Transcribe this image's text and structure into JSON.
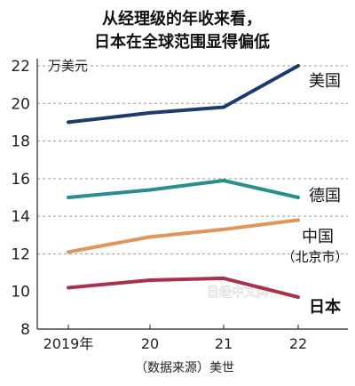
{
  "chart_data": {
    "type": "line",
    "title_lines": [
      "从经理级的年收来看，",
      "日本在全球范围显得偏低"
    ],
    "unit_label": "万美元",
    "x": [
      "2019年",
      "20",
      "21",
      "22"
    ],
    "ylim": [
      8,
      22
    ],
    "yticks": [
      8,
      10,
      12,
      14,
      16,
      18,
      20,
      22
    ],
    "gridlines": [
      12,
      14,
      16,
      18,
      20,
      22
    ],
    "series": [
      {
        "name": "美国",
        "values": [
          19.0,
          19.5,
          19.8,
          22.0
        ],
        "color": "#1d3a6e"
      },
      {
        "name": "德国",
        "values": [
          15.0,
          15.4,
          15.9,
          15.0
        ],
        "color": "#2a8f8a"
      },
      {
        "name": "中国",
        "sublabel": "（北京市）",
        "values": [
          12.1,
          12.9,
          13.3,
          13.8
        ],
        "color": "#e0955a"
      },
      {
        "name": "日本",
        "values": [
          10.2,
          10.6,
          10.7,
          9.7
        ],
        "color": "#a8324e",
        "bold": true
      }
    ],
    "source": "（数据来源）美世",
    "watermark": "日经中文网"
  }
}
